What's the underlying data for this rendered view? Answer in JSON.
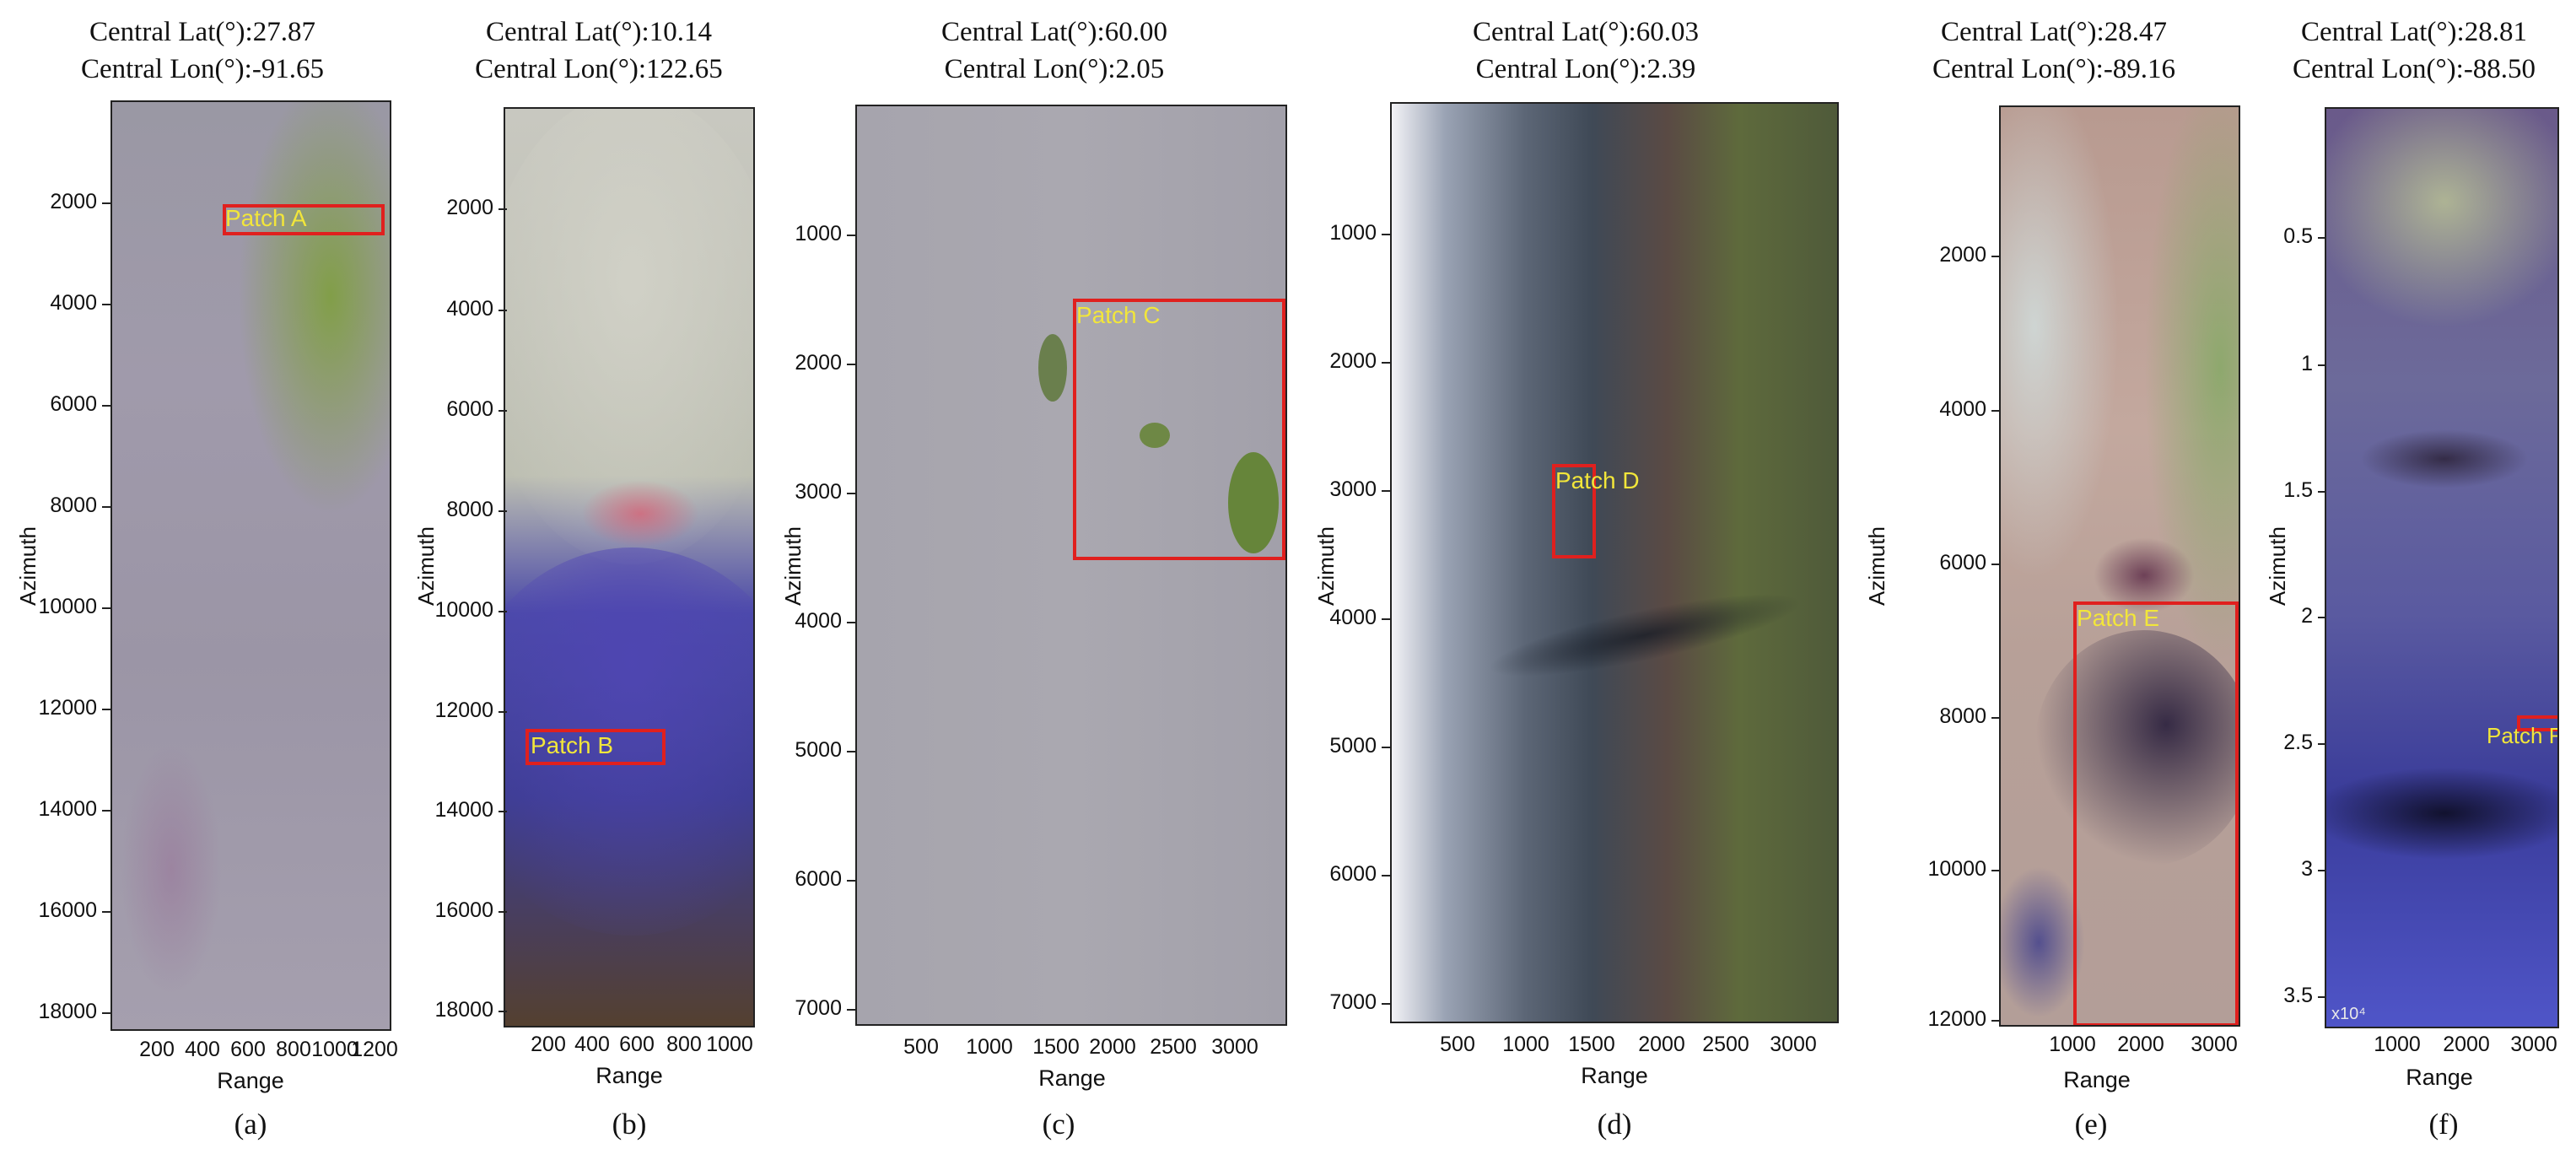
{
  "axis_labels": {
    "y": "Azimuth",
    "x": "Range"
  },
  "panels": [
    {
      "id": "a",
      "caption": "(a)",
      "lat_text": "Central Lat(°):27.87",
      "lon_text": "Central Lon(°):-91.65",
      "patch_label": "Patch A",
      "yticks": [
        "2000",
        "4000",
        "6000",
        "8000",
        "10000",
        "12000",
        "14000",
        "16000",
        "18000"
      ],
      "xticks": [
        "200",
        "400",
        "600",
        "800",
        "1000",
        "1200"
      ]
    },
    {
      "id": "b",
      "caption": "(b)",
      "lat_text": "Central Lat(°):10.14",
      "lon_text": "Central Lon(°):122.65",
      "patch_label": "Patch B",
      "yticks": [
        "2000",
        "4000",
        "6000",
        "8000",
        "10000",
        "12000",
        "14000",
        "16000",
        "18000"
      ],
      "xticks": [
        "200",
        "400",
        "600",
        "800",
        "1000"
      ]
    },
    {
      "id": "c",
      "caption": "(c)",
      "lat_text": "Central Lat(°):60.00",
      "lon_text": "Central Lon(°):2.05",
      "patch_label": "Patch C",
      "yticks": [
        "1000",
        "2000",
        "3000",
        "4000",
        "5000",
        "6000",
        "7000"
      ],
      "xticks": [
        "500",
        "1000",
        "1500",
        "2000",
        "2500",
        "3000"
      ]
    },
    {
      "id": "d",
      "caption": "(d)",
      "lat_text": "Central Lat(°):60.03",
      "lon_text": "Central Lon(°):2.39",
      "patch_label": "Patch D",
      "yticks": [
        "1000",
        "2000",
        "3000",
        "4000",
        "5000",
        "6000",
        "7000"
      ],
      "xticks": [
        "500",
        "1000",
        "1500",
        "2000",
        "2500",
        "3000"
      ]
    },
    {
      "id": "e",
      "caption": "(e)",
      "lat_text": "Central Lat(°):28.47",
      "lon_text": "Central Lon(°):-89.16",
      "patch_label": "Patch E",
      "yticks": [
        "2000",
        "4000",
        "6000",
        "8000",
        "10000",
        "12000"
      ],
      "xticks": [
        "1000",
        "2000",
        "3000"
      ]
    },
    {
      "id": "f",
      "caption": "(f)",
      "lat_text": "Central Lat(°):28.81",
      "lon_text": "Central Lon(°):-88.50",
      "patch_label": "Patch F",
      "yticks": [
        "0.5",
        "1",
        "1.5",
        "2",
        "2.5",
        "3",
        "3.5"
      ],
      "xticks": [
        "1000",
        "2000",
        "3000"
      ],
      "multiplier": "x10⁴"
    }
  ],
  "colors": {
    "patch_border": "#e0201e",
    "patch_label": "#f2e63a"
  }
}
